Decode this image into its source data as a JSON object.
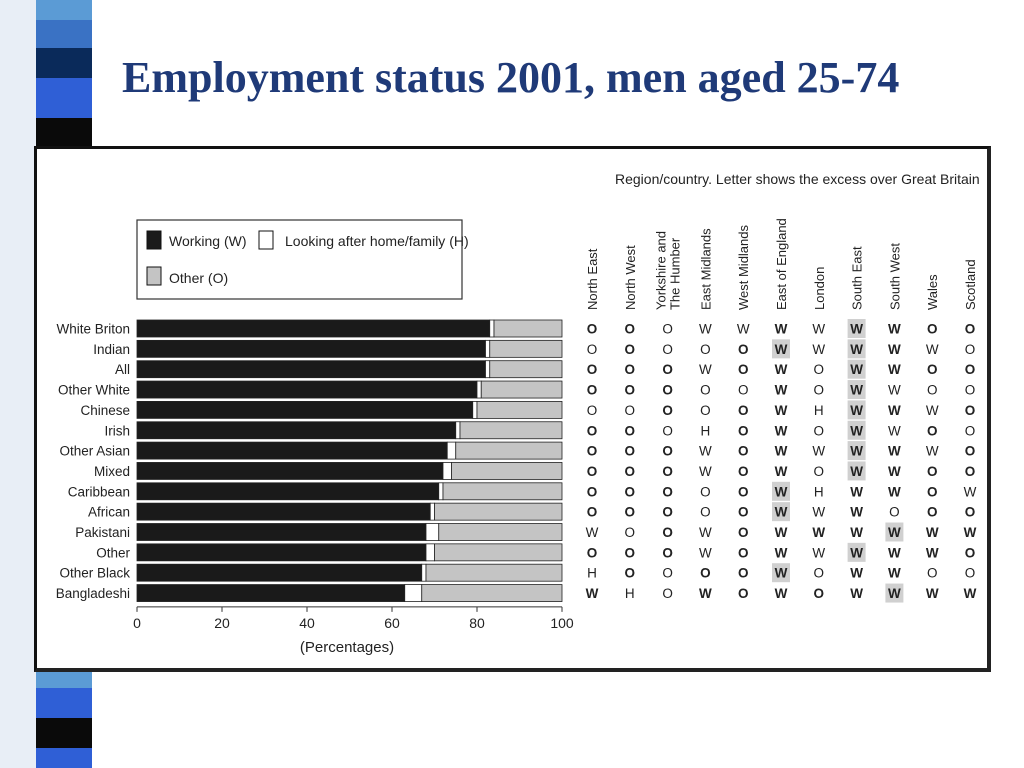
{
  "slide": {
    "title": "Employment status 2001, men aged 25-74",
    "accent_colors": [
      "#1f3a78",
      "#2f5fd6",
      "#5b9bd5",
      "#8ec3e6",
      "#0a0a0a"
    ]
  },
  "chart_data": {
    "type": "bar",
    "orientation": "horizontal",
    "stacked": true,
    "title": "",
    "xlabel": "(Percentages)",
    "ylabel": "",
    "xlim": [
      0,
      100
    ],
    "xticks": [
      0,
      20,
      40,
      60,
      80,
      100
    ],
    "categories": [
      "White Briton",
      "Indian",
      "All",
      "Other White",
      "Chinese",
      "Irish",
      "Other Asian",
      "Mixed",
      "Caribbean",
      "African",
      "Pakistani",
      "Other",
      "Other Black",
      "Bangladeshi"
    ],
    "series": [
      {
        "name": "Working (W)",
        "color": "#1a1a1a",
        "values": [
          83,
          82,
          82,
          80,
          79,
          75,
          73,
          72,
          71,
          69,
          68,
          68,
          67,
          63
        ]
      },
      {
        "name": "Looking after home/family (H)",
        "color": "#ffffff",
        "values": [
          1,
          1,
          1,
          1,
          1,
          1,
          2,
          2,
          1,
          1,
          3,
          2,
          1,
          4
        ]
      },
      {
        "name": "Other (O)",
        "color": "#c4c4c4",
        "values": [
          16,
          17,
          17,
          19,
          20,
          24,
          25,
          26,
          28,
          30,
          29,
          30,
          32,
          33
        ]
      }
    ],
    "legend_position": "top-left",
    "region_table": {
      "title": "Region/country. Letter shows the excess over Great Britain",
      "regions": [
        "North East",
        "North West",
        "Yorkshire and The Humber",
        "East Midlands",
        "West Midlands",
        "East of England",
        "London",
        "South East",
        "South West",
        "Wales",
        "Scotland"
      ],
      "region_lines": [
        [
          "North East"
        ],
        [
          "North West"
        ],
        [
          "Yorkshire and",
          "The Humber"
        ],
        [
          "East Midlands"
        ],
        [
          "West Midlands"
        ],
        [
          "East of England"
        ],
        [
          "London"
        ],
        [
          "South East"
        ],
        [
          "South West"
        ],
        [
          "Wales"
        ],
        [
          "Scotland"
        ]
      ],
      "rows": [
        [
          "O",
          "O",
          "O",
          "W",
          "W",
          "W",
          "W",
          "W",
          "W",
          "O",
          "O"
        ],
        [
          "O",
          "O",
          "O",
          "O",
          "O",
          "W",
          "W",
          "W",
          "W",
          "W",
          "O"
        ],
        [
          "O",
          "O",
          "O",
          "W",
          "O",
          "W",
          "O",
          "W",
          "W",
          "O",
          "O"
        ],
        [
          "O",
          "O",
          "O",
          "O",
          "O",
          "W",
          "O",
          "W",
          "W",
          "O",
          "O"
        ],
        [
          "O",
          "O",
          "O",
          "O",
          "O",
          "W",
          "H",
          "W",
          "W",
          "W",
          "O"
        ],
        [
          "O",
          "O",
          "O",
          "H",
          "O",
          "W",
          "O",
          "W",
          "W",
          "O",
          "O"
        ],
        [
          "O",
          "O",
          "O",
          "W",
          "O",
          "W",
          "W",
          "W",
          "W",
          "W",
          "O"
        ],
        [
          "O",
          "O",
          "O",
          "W",
          "O",
          "W",
          "O",
          "W",
          "W",
          "O",
          "O"
        ],
        [
          "O",
          "O",
          "O",
          "O",
          "O",
          "W",
          "H",
          "W",
          "W",
          "O",
          "W"
        ],
        [
          "O",
          "O",
          "O",
          "O",
          "O",
          "W",
          "W",
          "W",
          "O",
          "O",
          "O"
        ],
        [
          "W",
          "O",
          "O",
          "W",
          "O",
          "W",
          "W",
          "W",
          "W",
          "W",
          "W"
        ],
        [
          "O",
          "O",
          "O",
          "W",
          "O",
          "W",
          "W",
          "W",
          "W",
          "W",
          "O"
        ],
        [
          "H",
          "O",
          "O",
          "O",
          "O",
          "W",
          "O",
          "W",
          "W",
          "O",
          "O"
        ],
        [
          "W",
          "H",
          "O",
          "W",
          "O",
          "W",
          "O",
          "W",
          "W",
          "W",
          "W"
        ]
      ],
      "bold": [
        [
          1,
          1,
          0,
          0,
          0,
          1,
          0,
          1,
          1,
          1,
          1
        ],
        [
          0,
          1,
          0,
          0,
          1,
          1,
          0,
          1,
          1,
          0,
          0
        ],
        [
          1,
          1,
          1,
          0,
          1,
          1,
          0,
          1,
          1,
          1,
          1
        ],
        [
          1,
          1,
          1,
          0,
          0,
          1,
          0,
          1,
          0,
          0,
          0
        ],
        [
          0,
          0,
          1,
          0,
          1,
          1,
          0,
          1,
          1,
          0,
          1
        ],
        [
          1,
          1,
          0,
          0,
          1,
          1,
          0,
          1,
          0,
          1,
          0
        ],
        [
          1,
          1,
          1,
          0,
          1,
          1,
          0,
          1,
          1,
          0,
          1
        ],
        [
          1,
          1,
          1,
          0,
          1,
          1,
          0,
          1,
          1,
          1,
          1
        ],
        [
          1,
          1,
          1,
          0,
          1,
          1,
          0,
          1,
          1,
          1,
          0
        ],
        [
          1,
          1,
          1,
          0,
          1,
          1,
          0,
          1,
          0,
          1,
          1
        ],
        [
          0,
          0,
          1,
          0,
          1,
          1,
          1,
          1,
          1,
          1,
          1
        ],
        [
          1,
          1,
          1,
          0,
          1,
          1,
          0,
          1,
          1,
          1,
          1
        ],
        [
          0,
          1,
          0,
          1,
          1,
          1,
          0,
          1,
          1,
          0,
          0
        ],
        [
          1,
          0,
          0,
          1,
          1,
          1,
          1,
          1,
          1,
          1,
          1
        ]
      ],
      "shaded": [
        [
          0,
          0,
          0,
          0,
          0,
          0,
          0,
          1,
          0,
          0,
          0
        ],
        [
          0,
          0,
          0,
          0,
          0,
          1,
          0,
          1,
          0,
          0,
          0
        ],
        [
          0,
          0,
          0,
          0,
          0,
          0,
          0,
          1,
          0,
          0,
          0
        ],
        [
          0,
          0,
          0,
          0,
          0,
          0,
          0,
          1,
          0,
          0,
          0
        ],
        [
          0,
          0,
          0,
          0,
          0,
          0,
          0,
          1,
          0,
          0,
          0
        ],
        [
          0,
          0,
          0,
          0,
          0,
          0,
          0,
          1,
          0,
          0,
          0
        ],
        [
          0,
          0,
          0,
          0,
          0,
          0,
          0,
          1,
          0,
          0,
          0
        ],
        [
          0,
          0,
          0,
          0,
          0,
          0,
          0,
          1,
          0,
          0,
          0
        ],
        [
          0,
          0,
          0,
          0,
          0,
          1,
          0,
          0,
          0,
          0,
          0
        ],
        [
          0,
          0,
          0,
          0,
          0,
          1,
          0,
          0,
          0,
          0,
          0
        ],
        [
          0,
          0,
          0,
          0,
          0,
          0,
          0,
          0,
          1,
          0,
          0
        ],
        [
          0,
          0,
          0,
          0,
          0,
          0,
          0,
          1,
          0,
          0,
          0
        ],
        [
          0,
          0,
          0,
          0,
          0,
          1,
          0,
          0,
          0,
          0,
          0
        ],
        [
          0,
          0,
          0,
          0,
          0,
          0,
          0,
          0,
          1,
          0,
          0
        ]
      ],
      "shade_color": "#d0d0d0"
    }
  }
}
